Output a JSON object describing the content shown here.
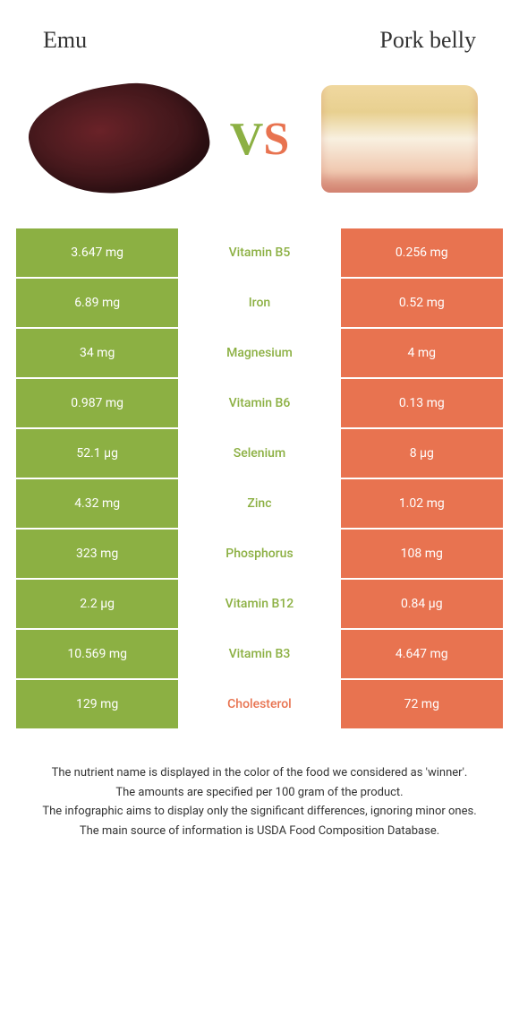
{
  "header": {
    "left_title": "Emu",
    "right_title": "Pork belly",
    "vs_v": "V",
    "vs_s": "S"
  },
  "colors": {
    "green": "#8cb043",
    "orange": "#e87350",
    "green_text": "#8cb043",
    "orange_text": "#e87350"
  },
  "rows": [
    {
      "left": "3.647 mg",
      "label": "Vitamin B5",
      "right": "0.256 mg",
      "winner": "left"
    },
    {
      "left": "6.89 mg",
      "label": "Iron",
      "right": "0.52 mg",
      "winner": "left"
    },
    {
      "left": "34 mg",
      "label": "Magnesium",
      "right": "4 mg",
      "winner": "left"
    },
    {
      "left": "0.987 mg",
      "label": "Vitamin B6",
      "right": "0.13 mg",
      "winner": "left"
    },
    {
      "left": "52.1 µg",
      "label": "Selenium",
      "right": "8 µg",
      "winner": "left"
    },
    {
      "left": "4.32 mg",
      "label": "Zinc",
      "right": "1.02 mg",
      "winner": "left"
    },
    {
      "left": "323 mg",
      "label": "Phosphorus",
      "right": "108 mg",
      "winner": "left"
    },
    {
      "left": "2.2 µg",
      "label": "Vitamin B12",
      "right": "0.84 µg",
      "winner": "left"
    },
    {
      "left": "10.569 mg",
      "label": "Vitamin B3",
      "right": "4.647 mg",
      "winner": "left"
    },
    {
      "left": "129 mg",
      "label": "Cholesterol",
      "right": "72 mg",
      "winner": "right"
    }
  ],
  "footer": {
    "line1": "The nutrient name is displayed in the color of the food we considered as 'winner'.",
    "line2": "The amounts are specified per 100 gram of the product.",
    "line3": "The infographic aims to display only the significant differences, ignoring minor ones.",
    "line4": "The main source of information is USDA Food Composition Database."
  }
}
